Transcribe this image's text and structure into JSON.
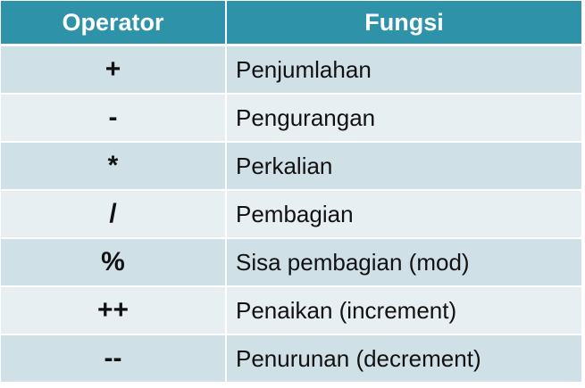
{
  "header": {
    "operator": "Operator",
    "fungsi": "Fungsi"
  },
  "rows": [
    {
      "operator": "+",
      "fungsi": "Penjumlahan"
    },
    {
      "operator": "-",
      "fungsi": "Pengurangan"
    },
    {
      "operator": "*",
      "fungsi": "Perkalian"
    },
    {
      "operator": "/",
      "fungsi": "Pembagian"
    },
    {
      "operator": "%",
      "fungsi": "Sisa pembagian (mod)"
    },
    {
      "operator": "++",
      "fungsi": "Penaikan (increment)"
    },
    {
      "operator": "--",
      "fungsi": "Penurunan (decrement)"
    }
  ],
  "colors": {
    "header_bg": "#2e93a9",
    "row_odd": "#cfe0e6",
    "row_even": "#e8eff2"
  }
}
